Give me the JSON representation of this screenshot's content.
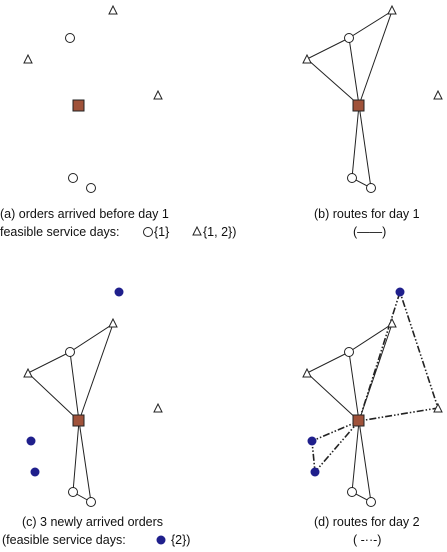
{
  "captions": {
    "a_line1": "(a) orders arrived before day 1",
    "a_line2_prefix": "feasible service days:",
    "a_circle_days": "{1}",
    "a_triangle_days": "{1, 2})",
    "b_line1": "(b) routes for day 1",
    "b_legend": "(——)",
    "c_line1": "(c) 3 newly arrived orders",
    "c_line2_prefix": "(feasible service days:",
    "c_dot_days": "{2})",
    "d_line1": "(d) routes for day 2",
    "d_legend": "( -··-)"
  },
  "colors": {
    "depot": "#A0523A",
    "new_order": "#1F1F8C",
    "stroke": "#222222"
  },
  "icons": {
    "depot": "square-depot-icon",
    "order_day1": "circle-order-icon",
    "order_flexible": "triangle-order-icon",
    "order_day2": "filled-circle-order-icon"
  }
}
